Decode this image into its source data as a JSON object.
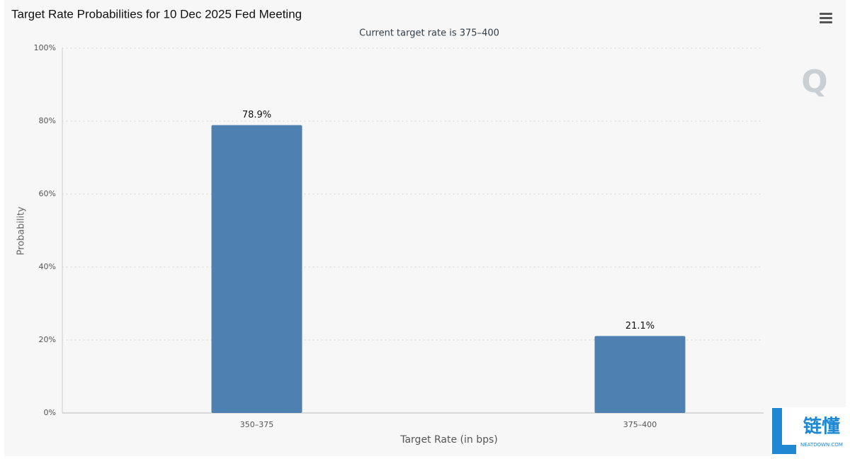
{
  "chart_data": {
    "type": "bar",
    "title": "Target Rate Probabilities for 10 Dec 2025 Fed Meeting",
    "subtitle": "Current target rate is 375–400",
    "x_label": "Target Rate (in bps)",
    "y_label": "Probability",
    "categories": [
      "350–375",
      "375–400"
    ],
    "values": [
      78.9,
      21.1
    ],
    "value_labels": [
      "78.9%",
      "21.1%"
    ],
    "color": "#4e80b2",
    "ylim": [
      0,
      100
    ],
    "yticks": [
      {
        "value": 0,
        "label": "0%"
      },
      {
        "value": 20,
        "label": "20%"
      },
      {
        "value": 40,
        "label": "40%"
      },
      {
        "value": 60,
        "label": "60%"
      },
      {
        "value": 80,
        "label": "80%"
      },
      {
        "value": 100,
        "label": "100%"
      }
    ],
    "grid": true
  },
  "watermark": {
    "logo": "Q",
    "brand": "链懂",
    "brand_sub": "NEATDOWN.COM"
  }
}
